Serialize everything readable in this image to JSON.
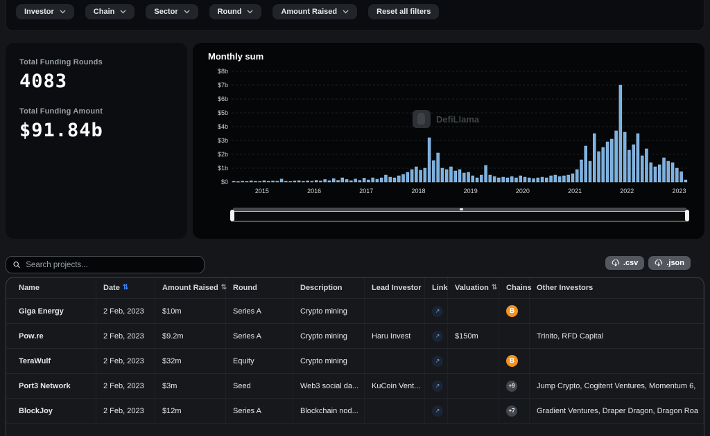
{
  "filters": {
    "items": [
      {
        "label": "Investor"
      },
      {
        "label": "Chain"
      },
      {
        "label": "Sector"
      },
      {
        "label": "Round"
      },
      {
        "label": "Amount Raised"
      }
    ],
    "reset_label": "Reset all filters"
  },
  "stats": {
    "rounds_label": "Total Funding Rounds",
    "rounds_value": "4083",
    "amount_label": "Total Funding Amount",
    "amount_value": "$91.84b"
  },
  "watermark_text": "DefiLlama",
  "chart_data": {
    "type": "bar",
    "title": "Monthly sum",
    "unit": "USD billions",
    "x_start_month": "2014-06",
    "x_tick_labels": [
      "2015",
      "2016",
      "2017",
      "2018",
      "2019",
      "2020",
      "2021",
      "2022",
      "2023"
    ],
    "x_tick_indices": [
      7,
      19,
      31,
      43,
      55,
      67,
      79,
      91,
      103
    ],
    "y_tick_labels": [
      "$0",
      "$1b",
      "$2b",
      "$3b",
      "$4b",
      "$5b",
      "$6b",
      "$7b",
      "$8b"
    ],
    "ylim": [
      0,
      8
    ],
    "bar_color": "#7ab1e3",
    "bar_stroke": "#a6cbee",
    "grid_color": "#1d2023",
    "values": [
      0.05,
      0.03,
      0.06,
      0.04,
      0.09,
      0.05,
      0.04,
      0.1,
      0.05,
      0.08,
      0.06,
      0.22,
      0.05,
      0.04,
      0.08,
      0.1,
      0.05,
      0.09,
      0.06,
      0.12,
      0.08,
      0.18,
      0.1,
      0.25,
      0.12,
      0.3,
      0.18,
      0.1,
      0.22,
      0.12,
      0.28,
      0.15,
      0.3,
      0.2,
      0.3,
      0.5,
      0.35,
      0.3,
      0.45,
      0.55,
      0.7,
      0.9,
      1.1,
      0.85,
      1.0,
      3.2,
      1.55,
      2.1,
      1.0,
      0.9,
      1.1,
      0.8,
      0.9,
      0.65,
      0.7,
      0.45,
      0.3,
      0.5,
      1.2,
      0.5,
      0.4,
      0.3,
      0.35,
      0.3,
      0.4,
      0.3,
      0.45,
      0.35,
      0.3,
      0.25,
      0.3,
      0.35,
      0.3,
      0.45,
      0.5,
      0.4,
      0.45,
      0.5,
      0.6,
      0.9,
      1.6,
      2.6,
      1.5,
      3.5,
      2.2,
      2.5,
      2.9,
      3.1,
      3.7,
      7.0,
      3.6,
      2.3,
      2.7,
      3.5,
      1.9,
      2.4,
      1.4,
      1.1,
      1.25,
      1.75,
      1.5,
      1.4,
      1.0,
      0.75,
      0.15
    ]
  },
  "toolbar": {
    "search_placeholder": "Search projects...",
    "csv_label": ".csv",
    "json_label": ".json"
  },
  "table": {
    "columns": [
      {
        "label": "Name",
        "sort": false
      },
      {
        "label": "Date",
        "sort": true,
        "active": true
      },
      {
        "label": "Amount Raised",
        "sort": true
      },
      {
        "label": "Round",
        "sort": false
      },
      {
        "label": "Description",
        "sort": false
      },
      {
        "label": "Lead Investor",
        "sort": false
      },
      {
        "label": "Link",
        "sort": false
      },
      {
        "label": "Valuation",
        "sort": true
      },
      {
        "label": "Chains",
        "sort": false
      },
      {
        "label": "Other Investors",
        "sort": false
      }
    ],
    "rows": [
      {
        "name": "Giga Energy",
        "date": "2 Feb, 2023",
        "amount": "$10m",
        "round": "Series A",
        "description": "Crypto mining",
        "lead": "",
        "link": true,
        "valuation": "",
        "chain": "bitcoin",
        "chain_label": "B",
        "others": ""
      },
      {
        "name": "Pow.re",
        "date": "2 Feb, 2023",
        "amount": "$9.2m",
        "round": "Series A",
        "description": "Crypto mining",
        "lead": "Haru Invest",
        "link": true,
        "valuation": "$150m",
        "chain": "",
        "chain_label": "",
        "others": "Trinito, RFD Capital"
      },
      {
        "name": "TeraWulf",
        "date": "2 Feb, 2023",
        "amount": "$32m",
        "round": "Equity",
        "description": "Crypto mining",
        "lead": "",
        "link": true,
        "valuation": "",
        "chain": "bitcoin",
        "chain_label": "B",
        "others": ""
      },
      {
        "name": "Port3 Network",
        "date": "2 Feb, 2023",
        "amount": "$3m",
        "round": "Seed",
        "description": "Web3 social da...",
        "lead": "KuCoin Vent...",
        "link": true,
        "valuation": "",
        "chain": "badge",
        "chain_label": "+9",
        "others": "Jump Crypto, Cogitent Ventures, Momentum 6,"
      },
      {
        "name": "BlockJoy",
        "date": "2 Feb, 2023",
        "amount": "$12m",
        "round": "Series A",
        "description": "Blockchain nod...",
        "lead": "",
        "link": true,
        "valuation": "",
        "chain": "badge",
        "chain_label": "+7",
        "others": "Gradient Ventures, Draper Dragon, Dragon Roa"
      }
    ]
  }
}
